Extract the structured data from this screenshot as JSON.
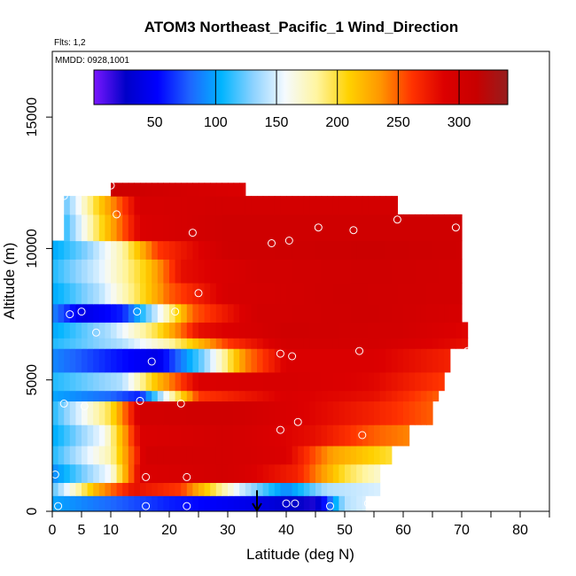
{
  "flights_label": "Flts: 1,2",
  "date_label": "MMDD: 0928,1001",
  "colorbar": {
    "min": 0,
    "max": 340,
    "ticks": [
      50,
      100,
      150,
      200,
      250,
      300
    ],
    "stops": [
      "#7a17ff",
      "#0000c8",
      "#0000ff",
      "#1e64ff",
      "#00b4ff",
      "#8cd2ff",
      "#f5faff",
      "#fff5a0",
      "#ffd200",
      "#ff9600",
      "#ff3200",
      "#dc0000",
      "#c80000",
      "#961e1e"
    ]
  },
  "chart_data": {
    "type": "heatmap",
    "title": "ATOM3 Northeast_Pacific_1 Wind_Direction",
    "xlabel": "Latitude (deg N)",
    "ylabel": "Altitude (m)",
    "xlim": [
      0,
      85
    ],
    "ylim": [
      0,
      17500
    ],
    "xticks": [
      0,
      5,
      10,
      20,
      30,
      40,
      50,
      60,
      70,
      80
    ],
    "yticks": [
      0,
      5000,
      10000,
      15000
    ],
    "value_name": "Wind_Direction",
    "altitude_bands": [
      {
        "z": [
          0,
          600
        ],
        "lat": [
          0,
          53.5
        ],
        "points": [
          [
            0,
            100
          ],
          [
            20,
            60
          ],
          [
            35,
            40
          ],
          [
            45,
            20
          ],
          [
            50,
            140
          ],
          [
            53.5,
            150
          ]
        ]
      },
      {
        "z": [
          600,
          1100
        ],
        "lat": [
          0,
          56
        ],
        "points": [
          [
            0,
            120
          ],
          [
            8,
            230
          ],
          [
            14,
            280
          ],
          [
            22,
            260
          ],
          [
            32,
            150
          ],
          [
            40,
            90
          ],
          [
            47,
            140
          ],
          [
            56,
            150
          ]
        ]
      },
      {
        "z": [
          1100,
          1800
        ],
        "lat": [
          0,
          56
        ],
        "points": [
          [
            0,
            90
          ],
          [
            10,
            160
          ],
          [
            15,
            290
          ],
          [
            30,
            300
          ],
          [
            42,
            270
          ],
          [
            50,
            200
          ],
          [
            56,
            170
          ]
        ]
      },
      {
        "z": [
          1800,
          2500
        ],
        "lat": [
          0,
          58
        ],
        "points": [
          [
            0,
            110
          ],
          [
            10,
            180
          ],
          [
            16,
            300
          ],
          [
            30,
            300
          ],
          [
            40,
            290
          ],
          [
            48,
            230
          ],
          [
            58,
            200
          ]
        ]
      },
      {
        "z": [
          2500,
          3300
        ],
        "lat": [
          0,
          61
        ],
        "points": [
          [
            0,
            100
          ],
          [
            9,
            160
          ],
          [
            15,
            290
          ],
          [
            30,
            300
          ],
          [
            45,
            280
          ],
          [
            55,
            250
          ],
          [
            61,
            240
          ]
        ]
      },
      {
        "z": [
          3300,
          4200
        ],
        "lat": [
          0,
          65
        ],
        "points": [
          [
            0,
            110
          ],
          [
            10,
            200
          ],
          [
            15,
            300
          ],
          [
            30,
            305
          ],
          [
            45,
            285
          ],
          [
            55,
            270
          ],
          [
            65,
            250
          ]
        ]
      },
      {
        "z": [
          4200,
          4600
        ],
        "lat": [
          0,
          66
        ],
        "points": [
          [
            0,
            100
          ],
          [
            10,
            80
          ],
          [
            15,
            60
          ],
          [
            20,
            170
          ],
          [
            25,
            260
          ],
          [
            40,
            290
          ],
          [
            55,
            280
          ],
          [
            66,
            250
          ]
        ]
      },
      {
        "z": [
          4600,
          5300
        ],
        "lat": [
          0,
          67
        ],
        "points": [
          [
            0,
            110
          ],
          [
            12,
            140
          ],
          [
            18,
            220
          ],
          [
            25,
            290
          ],
          [
            40,
            295
          ],
          [
            55,
            285
          ],
          [
            67,
            260
          ]
        ]
      },
      {
        "z": [
          5300,
          6200
        ],
        "lat": [
          0,
          68
        ],
        "points": [
          [
            0,
            90
          ],
          [
            10,
            60
          ],
          [
            18,
            40
          ],
          [
            26,
            130
          ],
          [
            33,
            240
          ],
          [
            40,
            290
          ],
          [
            55,
            290
          ],
          [
            68,
            270
          ]
        ]
      },
      {
        "z": [
          6200,
          6600
        ],
        "lat": [
          0,
          71
        ],
        "points": [
          [
            0,
            110
          ],
          [
            12,
            140
          ],
          [
            20,
            180
          ],
          [
            30,
            260
          ],
          [
            40,
            300
          ],
          [
            55,
            300
          ],
          [
            71,
            280
          ]
        ]
      },
      {
        "z": [
          6600,
          7200
        ],
        "lat": [
          0,
          71
        ],
        "points": [
          [
            0,
            100
          ],
          [
            10,
            140
          ],
          [
            18,
            200
          ],
          [
            25,
            280
          ],
          [
            40,
            305
          ],
          [
            60,
            300
          ],
          [
            71,
            285
          ]
        ]
      },
      {
        "z": [
          7200,
          7900
        ],
        "lat": [
          0,
          70
        ],
        "points": [
          [
            0,
            90
          ],
          [
            5,
            40
          ],
          [
            12,
            60
          ],
          [
            18,
            150
          ],
          [
            24,
            250
          ],
          [
            35,
            300
          ],
          [
            55,
            305
          ],
          [
            70,
            295
          ]
        ]
      },
      {
        "z": [
          7900,
          8700
        ],
        "lat": [
          0,
          70
        ],
        "points": [
          [
            0,
            100
          ],
          [
            8,
            140
          ],
          [
            15,
            200
          ],
          [
            20,
            250
          ],
          [
            30,
            295
          ],
          [
            50,
            305
          ],
          [
            70,
            300
          ]
        ]
      },
      {
        "z": [
          8700,
          9600
        ],
        "lat": [
          0,
          70
        ],
        "points": [
          [
            0,
            110
          ],
          [
            8,
            150
          ],
          [
            16,
            210
          ],
          [
            22,
            280
          ],
          [
            35,
            300
          ],
          [
            55,
            305
          ],
          [
            70,
            300
          ]
        ]
      },
      {
        "z": [
          9600,
          10300
        ],
        "lat": [
          0,
          70
        ],
        "points": [
          [
            0,
            100
          ],
          [
            6,
            130
          ],
          [
            12,
            180
          ],
          [
            18,
            260
          ],
          [
            30,
            305
          ],
          [
            55,
            310
          ],
          [
            70,
            305
          ]
        ]
      },
      {
        "z": [
          10300,
          11300
        ],
        "lat": [
          2,
          70
        ],
        "points": [
          [
            2,
            110
          ],
          [
            8,
            200
          ],
          [
            15,
            290
          ],
          [
            30,
            305
          ],
          [
            50,
            305
          ],
          [
            70,
            305
          ]
        ]
      },
      {
        "z": [
          11300,
          12000
        ],
        "lat": [
          2,
          59
        ],
        "points": [
          [
            2,
            120
          ],
          [
            8,
            210
          ],
          [
            15,
            295
          ],
          [
            30,
            300
          ],
          [
            45,
            300
          ],
          [
            59,
            300
          ]
        ]
      },
      {
        "z": [
          12000,
          12500
        ],
        "lat": [
          10,
          33
        ],
        "points": [
          [
            10,
            310
          ],
          [
            20,
            300
          ],
          [
            33,
            290
          ]
        ]
      }
    ],
    "sample_points": [
      [
        0.5,
        1400
      ],
      [
        1,
        200
      ],
      [
        2,
        4100
      ],
      [
        2,
        12000
      ],
      [
        3,
        7500
      ],
      [
        5,
        7600
      ],
      [
        5.5,
        4000
      ],
      [
        7.5,
        6800
      ],
      [
        10,
        12400
      ],
      [
        11,
        11300
      ],
      [
        14.5,
        7600
      ],
      [
        15,
        4200
      ],
      [
        16,
        1300
      ],
      [
        16,
        200
      ],
      [
        17,
        5700
      ],
      [
        21,
        7600
      ],
      [
        22,
        4100
      ],
      [
        23,
        200
      ],
      [
        23,
        1300
      ],
      [
        24,
        10600
      ],
      [
        25,
        8300
      ],
      [
        37.5,
        10200
      ],
      [
        39,
        3100
      ],
      [
        39,
        6000
      ],
      [
        40,
        300
      ],
      [
        40.5,
        10300
      ],
      [
        41,
        5900
      ],
      [
        41.5,
        300
      ],
      [
        42,
        3400
      ],
      [
        45.5,
        10800
      ],
      [
        47.5,
        200
      ],
      [
        51.5,
        10700
      ],
      [
        52.5,
        6100
      ],
      [
        53,
        2900
      ],
      [
        54,
        300
      ],
      [
        59,
        11100
      ],
      [
        69,
        10800
      ],
      [
        71,
        6100
      ]
    ],
    "annotations": [
      {
        "type": "arrow",
        "lat": 35,
        "from_z": 800,
        "to_z": 0
      }
    ]
  }
}
